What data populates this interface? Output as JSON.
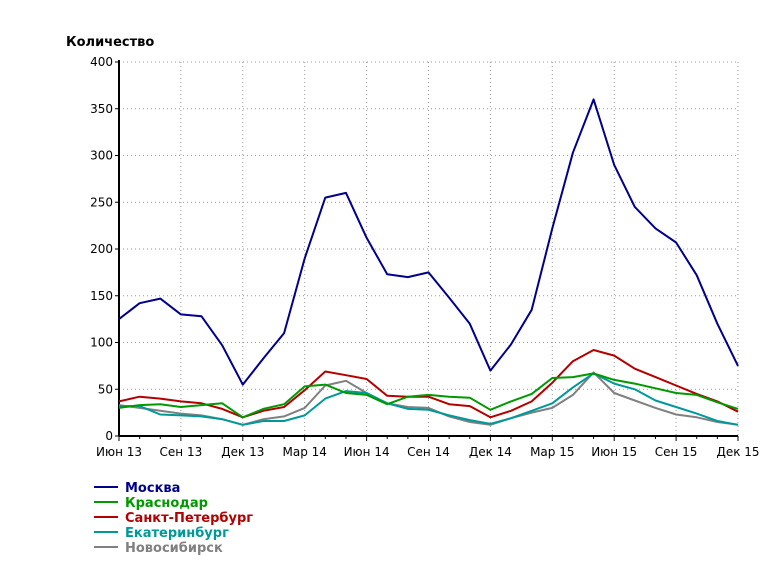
{
  "chart_data": {
    "type": "line",
    "ylabel": "Количество",
    "ylim": [
      0,
      400
    ],
    "y_ticks": [
      "0",
      "50",
      "100",
      "150",
      "200",
      "250",
      "300",
      "350",
      "400"
    ],
    "x_tick_labels": [
      "Июн 13",
      "Сен 13",
      "Дек 13",
      "Мар 14",
      "Июн 14",
      "Сен 14",
      "Дек 14",
      "Мар 15",
      "Июн 15",
      "Сен 15",
      "Дек 15"
    ],
    "grid": true,
    "legend_position": "bottom-left",
    "categories": [
      "2013-06",
      "2013-07",
      "2013-08",
      "2013-09",
      "2013-10",
      "2013-11",
      "2013-12",
      "2014-01",
      "2014-02",
      "2014-03",
      "2014-04",
      "2014-05",
      "2014-06",
      "2014-07",
      "2014-08",
      "2014-09",
      "2014-10",
      "2014-11",
      "2014-12",
      "2015-01",
      "2015-02",
      "2015-03",
      "2015-04",
      "2015-05",
      "2015-06",
      "2015-07",
      "2015-08",
      "2015-09",
      "2015-10",
      "2015-11",
      "2015-12"
    ],
    "series": [
      {
        "name": "Москва",
        "color": "#00008b",
        "values": [
          125,
          142,
          147,
          130,
          128,
          97,
          55,
          83,
          110,
          190,
          255,
          260,
          212,
          173,
          170,
          175,
          148,
          120,
          70,
          98,
          135,
          222,
          303,
          360,
          290,
          245,
          222,
          207,
          172,
          120,
          75
        ]
      },
      {
        "name": "Краснодар",
        "color": "#009900",
        "values": [
          30,
          33,
          34,
          31,
          33,
          35,
          20,
          29,
          34,
          53,
          55,
          46,
          44,
          34,
          42,
          44,
          42,
          41,
          28,
          37,
          45,
          62,
          63,
          67,
          60,
          56,
          51,
          46,
          44,
          36,
          29
        ]
      },
      {
        "name": "Санкт-Петербург",
        "color": "#b30000",
        "values": [
          37,
          42,
          40,
          37,
          35,
          29,
          20,
          27,
          31,
          49,
          69,
          65,
          61,
          43,
          42,
          42,
          34,
          32,
          20,
          27,
          37,
          57,
          80,
          92,
          86,
          72,
          63,
          54,
          45,
          37,
          26
        ]
      },
      {
        "name": "Екатеринбург",
        "color": "#009999",
        "values": [
          32,
          32,
          23,
          22,
          21,
          18,
          12,
          16,
          16,
          22,
          40,
          48,
          46,
          35,
          29,
          28,
          22,
          17,
          13,
          19,
          27,
          35,
          52,
          67,
          56,
          50,
          38,
          31,
          24,
          16,
          12
        ]
      },
      {
        "name": "Новосибирск",
        "color": "#808080",
        "values": [
          33,
          30,
          27,
          24,
          22,
          18,
          12,
          18,
          21,
          30,
          54,
          59,
          46,
          35,
          31,
          30,
          21,
          15,
          12,
          19,
          25,
          30,
          44,
          68,
          46,
          38,
          30,
          23,
          20,
          15,
          12
        ]
      }
    ]
  }
}
